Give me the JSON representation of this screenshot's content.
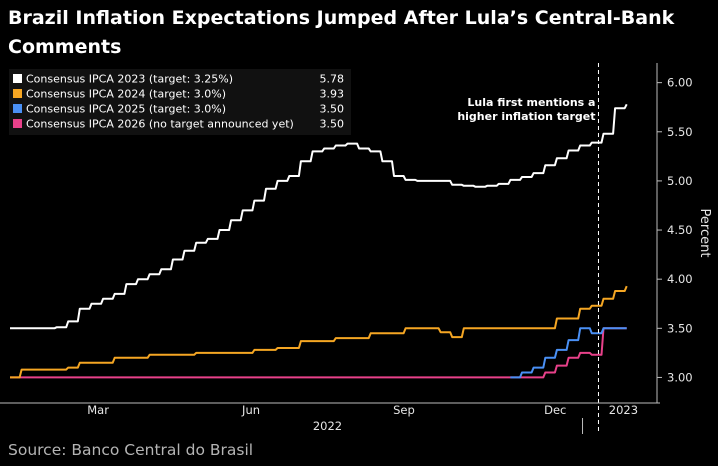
{
  "title": "Brazil Inflation Expectations Jumped After Lula’s Central-Bank Comments",
  "source": "Source: Banco Central do Brasil",
  "chart_data": {
    "type": "line",
    "title": "Brazil Inflation Expectations Jumped After Lula’s Central-Bank Comments",
    "ylabel": "Percent",
    "ylim": [
      2.75,
      6.2
    ],
    "yticks": [
      "3.00",
      "3.50",
      "4.00",
      "4.50",
      "5.00",
      "5.50",
      "6.00"
    ],
    "ytick_values": [
      3.0,
      3.5,
      4.0,
      4.5,
      5.0,
      5.5,
      6.0
    ],
    "xlim": [
      "2022-01-21",
      "2023-02-13"
    ],
    "xticks": [
      {
        "label": "Mar",
        "date": "2022-03-15"
      },
      {
        "label": "Jun",
        "date": "2022-06-15"
      },
      {
        "label": "Sep",
        "date": "2022-09-15"
      },
      {
        "label": "Dec",
        "date": "2022-12-15"
      },
      {
        "label": "2023",
        "date": "2023-01-25"
      }
    ],
    "year_labels": [
      {
        "label": "2022",
        "date": "2022-07-31"
      }
    ],
    "year_divider_date": "2023-01-01",
    "grid": false,
    "legend_position": "top-left",
    "annotation": {
      "text_lines": [
        "Lula first mentions a",
        "higher inflation target"
      ],
      "date": "2023-01-10"
    },
    "series": [
      {
        "name": "Consensus IPCA 2023 (target: 3.25%)",
        "last_value": "5.78",
        "color": "#ffffff",
        "points": [
          [
            "2022-01-21",
            3.5
          ],
          [
            "2022-02-18",
            3.51
          ],
          [
            "2022-02-25",
            3.57
          ],
          [
            "2022-03-04",
            3.7
          ],
          [
            "2022-03-11",
            3.75
          ],
          [
            "2022-03-18",
            3.8
          ],
          [
            "2022-03-25",
            3.85
          ],
          [
            "2022-04-01",
            3.95
          ],
          [
            "2022-04-08",
            4.0
          ],
          [
            "2022-04-15",
            4.05
          ],
          [
            "2022-04-22",
            4.1
          ],
          [
            "2022-04-29",
            4.2
          ],
          [
            "2022-05-06",
            4.29
          ],
          [
            "2022-05-13",
            4.37
          ],
          [
            "2022-05-20",
            4.41
          ],
          [
            "2022-05-27",
            4.5
          ],
          [
            "2022-06-03",
            4.6
          ],
          [
            "2022-06-10",
            4.7
          ],
          [
            "2022-06-17",
            4.8
          ],
          [
            "2022-06-24",
            4.92
          ],
          [
            "2022-07-01",
            5.0
          ],
          [
            "2022-07-08",
            5.05
          ],
          [
            "2022-07-15",
            5.2
          ],
          [
            "2022-07-22",
            5.3
          ],
          [
            "2022-07-29",
            5.33
          ],
          [
            "2022-08-05",
            5.36
          ],
          [
            "2022-08-12",
            5.38
          ],
          [
            "2022-08-19",
            5.33
          ],
          [
            "2022-08-26",
            5.3
          ],
          [
            "2022-09-02",
            5.2
          ],
          [
            "2022-09-09",
            5.05
          ],
          [
            "2022-09-16",
            5.01
          ],
          [
            "2022-09-23",
            5.0
          ],
          [
            "2022-09-30",
            5.0
          ],
          [
            "2022-10-07",
            5.0
          ],
          [
            "2022-10-14",
            4.96
          ],
          [
            "2022-10-21",
            4.95
          ],
          [
            "2022-10-28",
            4.94
          ],
          [
            "2022-11-04",
            4.95
          ],
          [
            "2022-11-11",
            4.97
          ],
          [
            "2022-11-18",
            5.01
          ],
          [
            "2022-11-25",
            5.04
          ],
          [
            "2022-12-02",
            5.08
          ],
          [
            "2022-12-09",
            5.16
          ],
          [
            "2022-12-16",
            5.23
          ],
          [
            "2022-12-23",
            5.31
          ],
          [
            "2022-12-30",
            5.36
          ],
          [
            "2023-01-06",
            5.39
          ],
          [
            "2023-01-13",
            5.48
          ],
          [
            "2023-01-20",
            5.74
          ],
          [
            "2023-01-27",
            5.78
          ]
        ]
      },
      {
        "name": "Consensus IPCA 2024 (target: 3.0%)",
        "last_value": "3.93",
        "color": "#f5a623",
        "points": [
          [
            "2022-01-21",
            3.0
          ],
          [
            "2022-01-28",
            3.08
          ],
          [
            "2022-02-25",
            3.1
          ],
          [
            "2022-03-04",
            3.15
          ],
          [
            "2022-03-25",
            3.2
          ],
          [
            "2022-04-15",
            3.23
          ],
          [
            "2022-05-13",
            3.25
          ],
          [
            "2022-06-17",
            3.28
          ],
          [
            "2022-07-01",
            3.3
          ],
          [
            "2022-07-15",
            3.37
          ],
          [
            "2022-08-05",
            3.4
          ],
          [
            "2022-08-26",
            3.45
          ],
          [
            "2022-09-16",
            3.5
          ],
          [
            "2022-10-07",
            3.46
          ],
          [
            "2022-10-14",
            3.41
          ],
          [
            "2022-10-21",
            3.5
          ],
          [
            "2022-11-11",
            3.5
          ],
          [
            "2022-12-09",
            3.5
          ],
          [
            "2022-12-16",
            3.6
          ],
          [
            "2022-12-30",
            3.7
          ],
          [
            "2023-01-06",
            3.73
          ],
          [
            "2023-01-13",
            3.8
          ],
          [
            "2023-01-20",
            3.88
          ],
          [
            "2023-01-27",
            3.93
          ]
        ]
      },
      {
        "name": "Consensus IPCA 2025 (target: 3.0%)",
        "last_value": "3.50",
        "color": "#4a90f5",
        "points": [
          [
            "2022-11-18",
            3.0
          ],
          [
            "2022-11-25",
            3.05
          ],
          [
            "2022-12-02",
            3.1
          ],
          [
            "2022-12-09",
            3.2
          ],
          [
            "2022-12-16",
            3.28
          ],
          [
            "2022-12-23",
            3.38
          ],
          [
            "2022-12-30",
            3.5
          ],
          [
            "2023-01-06",
            3.45
          ],
          [
            "2023-01-13",
            3.5
          ],
          [
            "2023-01-27",
            3.5
          ]
        ]
      },
      {
        "name": "Consensus IPCA 2026 (no target announced yet)",
        "last_value": "3.50",
        "color": "#e8418a",
        "points": [
          [
            "2022-01-21",
            3.0
          ],
          [
            "2022-11-18",
            3.0
          ],
          [
            "2022-12-02",
            3.0
          ],
          [
            "2022-12-09",
            3.05
          ],
          [
            "2022-12-16",
            3.12
          ],
          [
            "2022-12-23",
            3.2
          ],
          [
            "2022-12-30",
            3.25
          ],
          [
            "2023-01-06",
            3.23
          ],
          [
            "2023-01-13",
            3.5
          ],
          [
            "2023-01-27",
            3.5
          ]
        ]
      }
    ]
  }
}
